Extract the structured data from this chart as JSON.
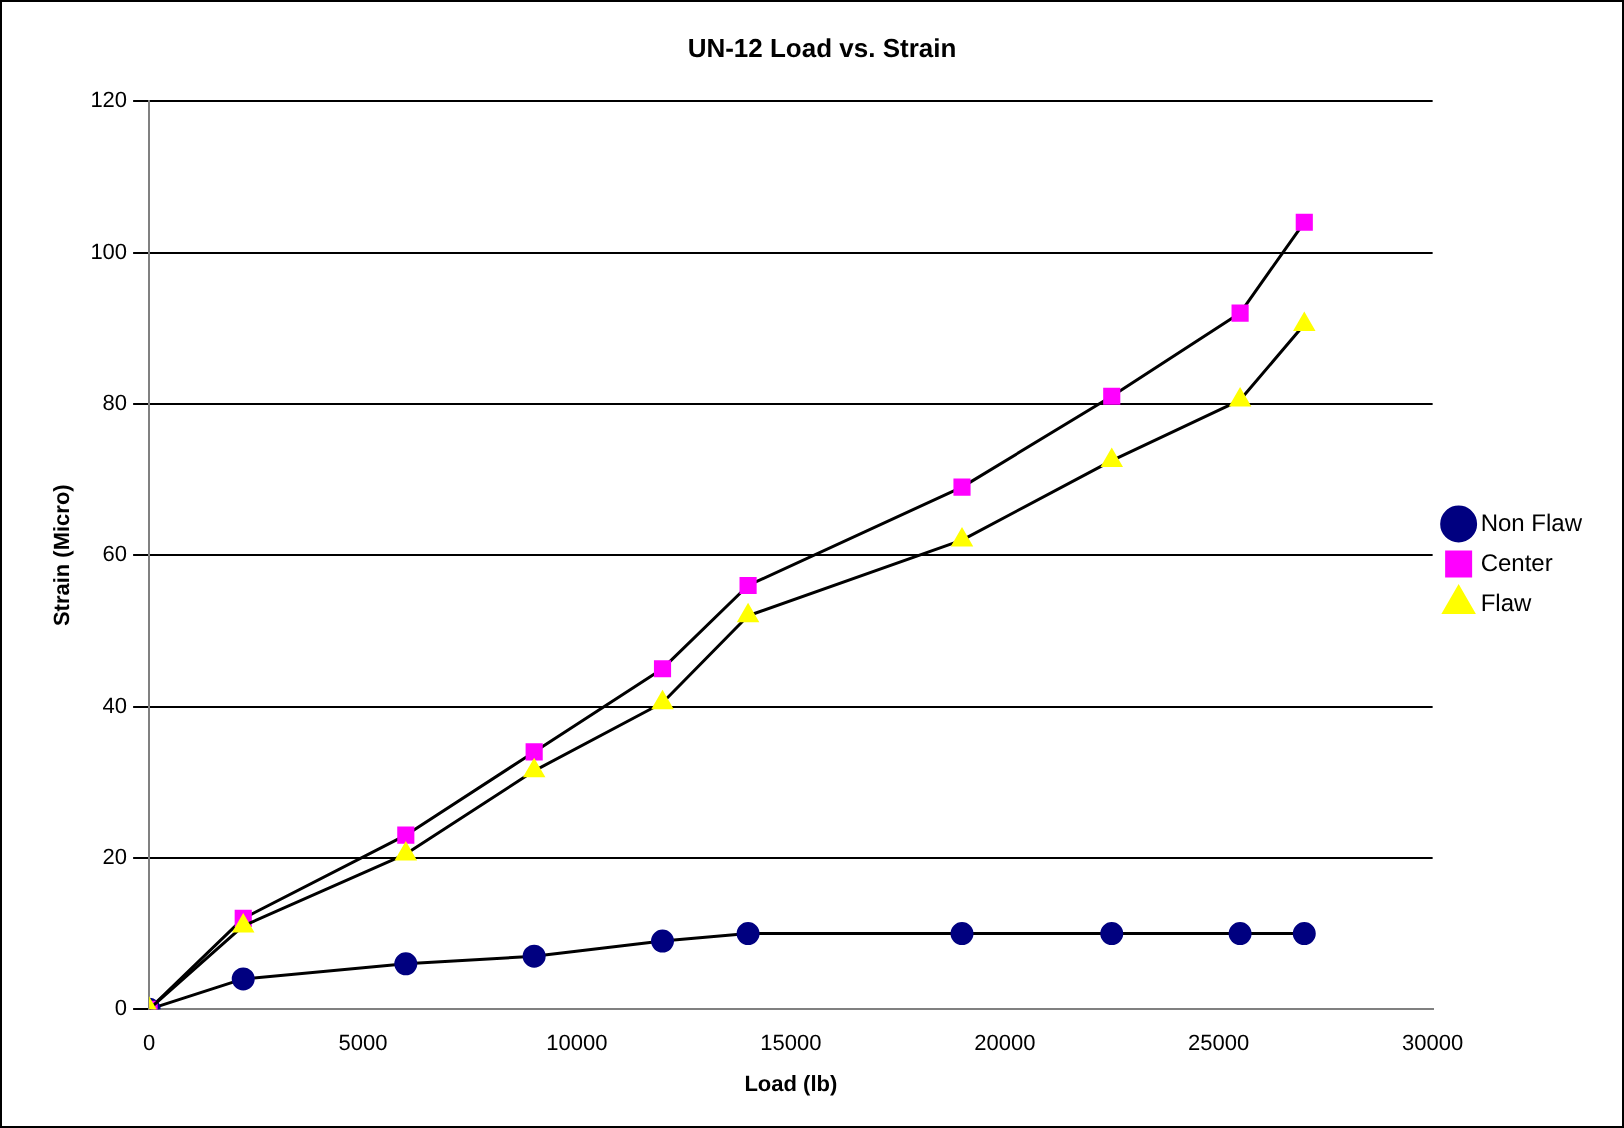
{
  "chart_data": {
    "type": "line",
    "title": "UN-12 Load vs. Strain",
    "xlabel": "Load (lb)",
    "ylabel": "Strain (Micro)",
    "xlim": [
      0,
      30000
    ],
    "xticks": [
      0,
      5000,
      10000,
      15000,
      20000,
      25000,
      30000
    ],
    "ylim": [
      0,
      120
    ],
    "yticks": [
      0,
      20,
      40,
      60,
      80,
      100,
      120
    ],
    "grid": "y",
    "legend": "right",
    "line_style": "solid",
    "x": [
      0,
      2200,
      6000,
      9000,
      12000,
      14000,
      19000,
      22500,
      25500,
      27000
    ],
    "series": [
      {
        "name": "Non Flaw",
        "color": "#000080",
        "marker": "circle",
        "values": [
          0,
          4,
          6,
          7,
          9,
          10,
          10,
          10,
          10,
          10
        ]
      },
      {
        "name": "Center",
        "color": "#ff00ff",
        "marker": "square",
        "values": [
          0,
          12,
          23,
          34,
          45,
          56,
          69,
          81,
          92,
          104
        ]
      },
      {
        "name": "Flaw",
        "color": "#ffff00",
        "marker": "triangle",
        "values": [
          0,
          11,
          20.5,
          31.5,
          40.5,
          52,
          62,
          72.5,
          80.5,
          90.5
        ]
      }
    ]
  }
}
